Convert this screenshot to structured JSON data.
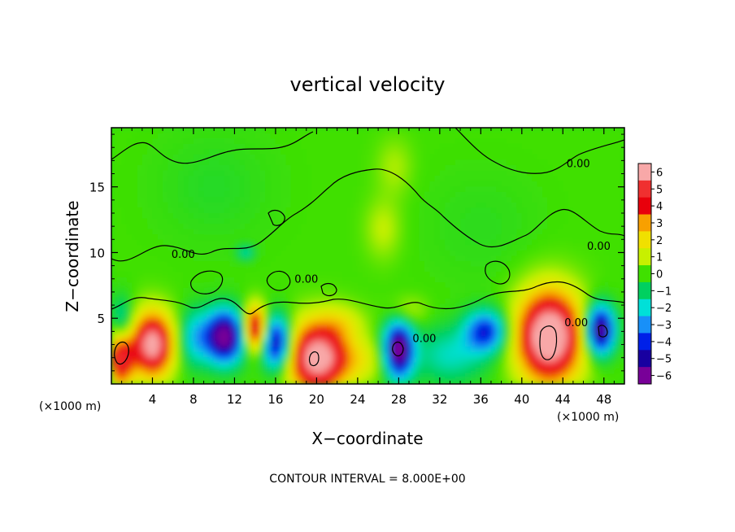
{
  "chart_data": {
    "type": "heatmap",
    "title": "vertical velocity",
    "xlabel": "X−coordinate",
    "ylabel": "Z−coordinate",
    "x_unit_left": "(×1000 m)",
    "x_unit_right": "(×1000 m)",
    "xlim": [
      0,
      50
    ],
    "ylim": [
      0,
      19.5
    ],
    "xticks": [
      4,
      8,
      12,
      16,
      20,
      24,
      28,
      32,
      36,
      40,
      44,
      48
    ],
    "xtick_labels": [
      "4",
      "8",
      "12",
      "16",
      "20",
      "24",
      "28",
      "32",
      "36",
      "40",
      "44",
      "48"
    ],
    "yticks": [
      5,
      10,
      15
    ],
    "ytick_labels": [
      "5",
      "10",
      "15"
    ],
    "colorbar": {
      "levels": [
        6,
        5,
        4,
        3,
        2,
        1,
        0,
        -1,
        -2,
        -3,
        -4,
        -5,
        -6
      ],
      "labels": [
        "6",
        "5",
        "4",
        "3",
        "2",
        "1",
        "0",
        "−1",
        "−2",
        "−3",
        "−4",
        "−5",
        "−6"
      ],
      "colors": [
        "#f8a8a8",
        "#f03030",
        "#e8000c",
        "#f8a000",
        "#f0e000",
        "#c8f000",
        "#40e000",
        "#00d060",
        "#00e0d8",
        "#1890f8",
        "#0020e8",
        "#1800a0",
        "#780098"
      ]
    },
    "contour_interval": "CONTOUR INTERVAL = 8.000E+00",
    "contour_labels": [
      {
        "text": "0.00",
        "x": 7.0,
        "y": 9.6
      },
      {
        "text": "0.00",
        "x": 19.0,
        "y": 7.7
      },
      {
        "text": "0.00",
        "x": 30.5,
        "y": 3.2
      },
      {
        "text": "0.00",
        "x": 45.3,
        "y": 4.4
      },
      {
        "text": "0.00",
        "x": 47.5,
        "y": 10.2
      },
      {
        "text": "0.00",
        "x": 45.5,
        "y": 16.5
      }
    ],
    "features": [
      {
        "x": 4.0,
        "z": 3.0,
        "value": 6.5,
        "sx": 1.4,
        "sz": 1.7
      },
      {
        "x": 0.9,
        "z": 2.2,
        "value": 5.2,
        "sx": 0.9,
        "sz": 1.7
      },
      {
        "x": 20.0,
        "z": 2.0,
        "value": 6.5,
        "sx": 2.0,
        "sz": 1.9
      },
      {
        "x": 14.0,
        "z": 4.2,
        "value": 5.5,
        "sx": 0.8,
        "sz": 1.2
      },
      {
        "x": 42.7,
        "z": 3.6,
        "value": 7.5,
        "sx": 2.2,
        "sz": 2.4
      },
      {
        "x": 11.0,
        "z": 3.6,
        "value": -6.5,
        "sx": 1.4,
        "sz": 1.4
      },
      {
        "x": 16.1,
        "z": 3.1,
        "value": -5.5,
        "sx": 1.0,
        "sz": 1.4
      },
      {
        "x": 28.0,
        "z": 2.6,
        "value": -6.5,
        "sx": 1.0,
        "sz": 1.5
      },
      {
        "x": 36.5,
        "z": 4.0,
        "value": -4.2,
        "sx": 1.4,
        "sz": 1.1
      },
      {
        "x": 47.6,
        "z": 4.1,
        "value": -6.3,
        "sx": 1.0,
        "sz": 1.3
      },
      {
        "x": 1.0,
        "z": 4.4,
        "value": -3.0,
        "sx": 0.8,
        "sz": 1.4
      },
      {
        "x": 8.0,
        "z": 3.5,
        "value": -2.0,
        "sx": 1.0,
        "sz": 1.5
      },
      {
        "x": 24.0,
        "z": 1.8,
        "value": 1.4,
        "sx": 2.2,
        "sz": 1.2
      },
      {
        "x": 33.0,
        "z": 2.2,
        "value": -1.8,
        "sx": 2.5,
        "sz": 1.5
      },
      {
        "x": 22.5,
        "z": 4.6,
        "value": 1.2,
        "sx": 1.6,
        "sz": 1.0
      },
      {
        "x": 28.8,
        "z": 5.5,
        "value": 1.1,
        "sx": 1.3,
        "sz": 0.8
      },
      {
        "x": 13.1,
        "z": 10.0,
        "value": -1.5,
        "sx": 0.6,
        "sz": 0.4
      },
      {
        "x": 26.5,
        "z": 11.8,
        "value": 1.0,
        "sx": 1.2,
        "sz": 1.6
      },
      {
        "x": 27.6,
        "z": 16.5,
        "value": 0.8,
        "sx": 1.2,
        "sz": 1.5
      },
      {
        "x": 10.0,
        "z": 15.0,
        "value": -0.4,
        "sx": 4.0,
        "sz": 3.0
      },
      {
        "x": 36.0,
        "z": 12.0,
        "value": -0.3,
        "sx": 4.0,
        "sz": 3.0
      }
    ]
  }
}
